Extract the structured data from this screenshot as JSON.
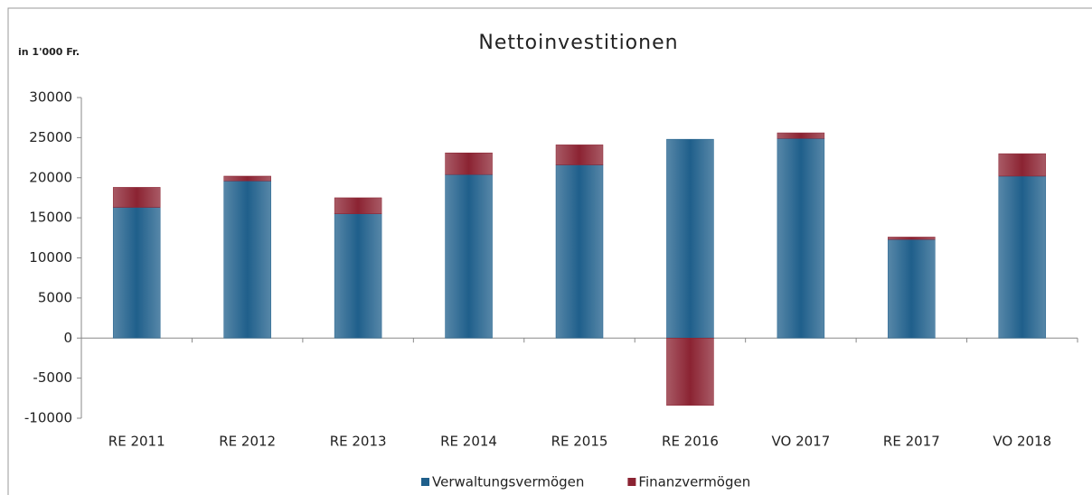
{
  "chart_data": {
    "type": "bar",
    "stacked": true,
    "title": "Nettoinvestitionen",
    "annotation": "in 1'000 Fr.",
    "categories": [
      "RE 2011",
      "RE 2012",
      "RE 2013",
      "RE 2014",
      "RE 2015",
      "RE 2016",
      "VO 2017",
      "RE 2017",
      "VO 2018"
    ],
    "series": [
      {
        "name": "Verwaltungsvermögen",
        "color": "#1f5f8b",
        "values": [
          16300,
          19600,
          15500,
          20400,
          21600,
          24800,
          24900,
          12300,
          20200
        ]
      },
      {
        "name": "Finanzvermögen",
        "color": "#8b2332",
        "values": [
          2500,
          600,
          2000,
          2700,
          2500,
          -8400,
          700,
          300,
          2800
        ]
      }
    ],
    "ylim": [
      -10000,
      30000
    ],
    "yticks": [
      -10000,
      -5000,
      0,
      5000,
      10000,
      15000,
      20000,
      25000,
      30000
    ],
    "legend": "bottom",
    "grid": false
  }
}
